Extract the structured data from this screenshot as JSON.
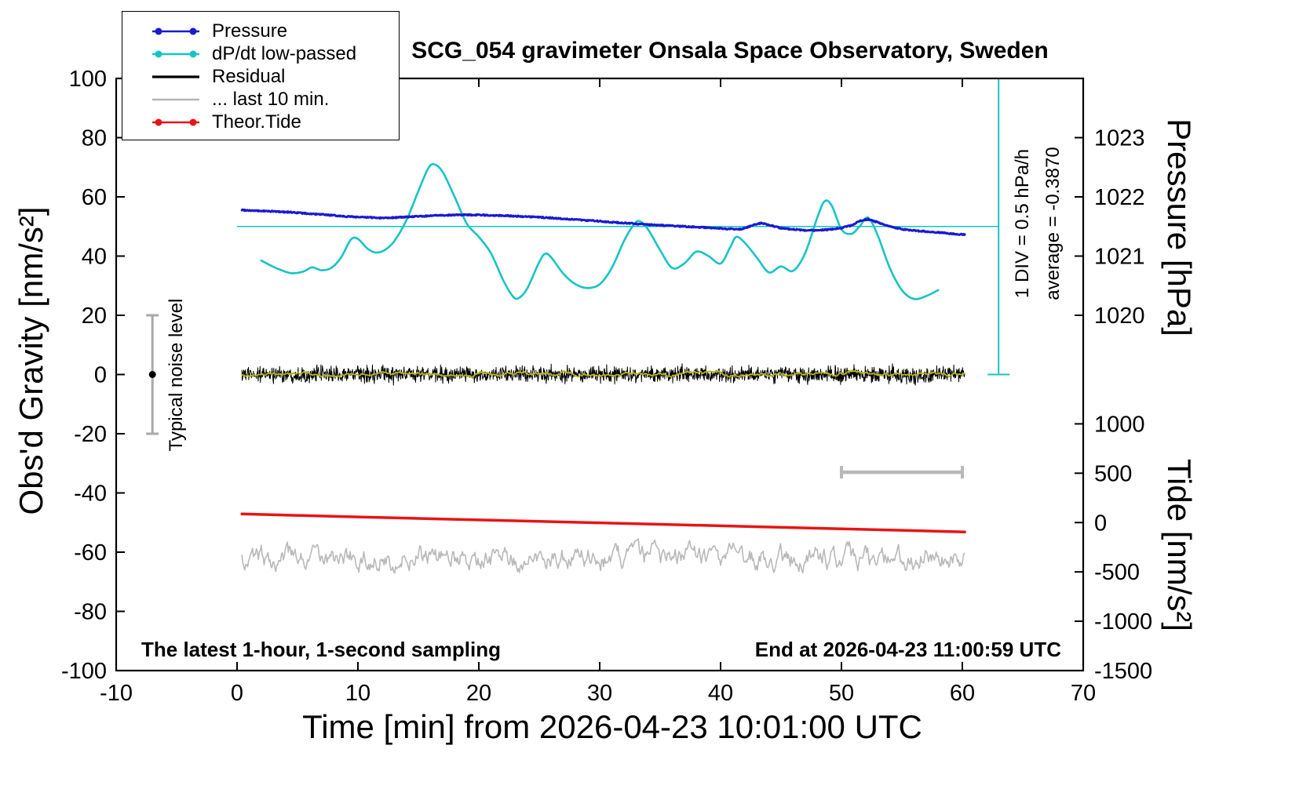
{
  "chart_data": {
    "type": "line",
    "title": "SCG_054 gravimeter Onsala Space Observatory, Sweden",
    "xlabel": "Time [min] from 2026-04-23 10:01:00 UTC",
    "ylabel_left": "Obs'd Gravity [nm/s²]",
    "ylabel_pressure": "Pressure [hPa]",
    "ylabel_tide": "Tide [nm/s²]",
    "footer_left": "The latest 1-hour, 1-second sampling",
    "footer_right": "End at 2026-04-23 11:00:59 UTC",
    "xlim": [
      -10,
      70
    ],
    "ylim": [
      -100,
      100
    ],
    "x_ticks": [
      -10,
      0,
      10,
      20,
      30,
      40,
      50,
      60,
      70
    ],
    "y_ticks_left": [
      -100,
      -80,
      -60,
      -40,
      -20,
      0,
      20,
      40,
      60,
      80,
      100
    ],
    "pressure_axis": {
      "ticks": [
        1023,
        1022,
        1021,
        1020
      ],
      "hpa_offset": 1019,
      "gravity_per_hpa": 20
    },
    "tide_axis": {
      "ticks": [
        1000,
        500,
        0,
        -500,
        -1000,
        -1500
      ],
      "gravity_offset": -50,
      "tide_per_gravity": 30
    },
    "reference_line_y": 50,
    "scale_bar": {
      "x": 63,
      "y_top": 100,
      "y_bottom": 0,
      "label_div": "1 DIV = 0.5 hPa/h",
      "label_avg": "average = -0.3870"
    },
    "noise_marker": {
      "x": -7,
      "y": 0,
      "half_range": 20,
      "label": "Typical noise level"
    },
    "interval_bar": {
      "x_start": 50,
      "x_end": 60,
      "y": -33
    },
    "legend": [
      {
        "id": "pressure",
        "label": "Pressure",
        "color": "#1a1ad2",
        "marker": "dots"
      },
      {
        "id": "dpdt",
        "label": "dP/dt low-passed",
        "color": "#17c4c4",
        "marker": "dots"
      },
      {
        "id": "residual",
        "label": "Residual",
        "color": "#000000",
        "marker": "line"
      },
      {
        "id": "last10",
        "label": "... last 10 min.",
        "color": "#b4b4b4",
        "marker": "line"
      },
      {
        "id": "tide",
        "label": "Theor.Tide",
        "color": "#e81414",
        "marker": "dots"
      }
    ],
    "series": {
      "pressure": {
        "color": "#1a1ad2",
        "width": 3,
        "step": 0.05,
        "jitter": 0.4,
        "seed": 99,
        "points": [
          [
            0.4,
            55.6
          ],
          [
            1.5,
            55.3
          ],
          [
            3,
            55.1
          ],
          [
            4.5,
            54.8
          ],
          [
            6,
            54.3
          ],
          [
            7.5,
            53.9
          ],
          [
            9,
            53.4
          ],
          [
            10.5,
            53.1
          ],
          [
            12,
            52.9
          ],
          [
            13.5,
            53.1
          ],
          [
            15,
            53.4
          ],
          [
            16.5,
            53.7
          ],
          [
            18,
            53.9
          ],
          [
            19.5,
            53.9
          ],
          [
            21,
            53.8
          ],
          [
            22.5,
            53.6
          ],
          [
            24,
            53.3
          ],
          [
            25.5,
            53.0
          ],
          [
            27,
            52.6
          ],
          [
            28.5,
            52.2
          ],
          [
            30,
            51.8
          ],
          [
            31.5,
            51.3
          ],
          [
            33,
            50.9
          ],
          [
            34.5,
            50.5
          ],
          [
            36,
            50.2
          ],
          [
            37.5,
            49.9
          ],
          [
            39,
            49.6
          ],
          [
            40.5,
            49.2
          ],
          [
            41.8,
            49.1
          ],
          [
            42.8,
            50.6
          ],
          [
            43.4,
            51.2
          ],
          [
            44.2,
            50.3
          ],
          [
            45,
            49.4
          ],
          [
            46,
            49.0
          ],
          [
            47,
            48.7
          ],
          [
            48,
            48.7
          ],
          [
            49,
            49.0
          ],
          [
            50,
            49.5
          ],
          [
            50.8,
            50.3
          ],
          [
            51.6,
            52.0
          ],
          [
            52.2,
            52.4
          ],
          [
            53,
            51.4
          ],
          [
            54,
            50.0
          ],
          [
            55,
            49.1
          ],
          [
            56,
            48.6
          ],
          [
            57,
            48.3
          ],
          [
            58,
            48.0
          ],
          [
            59,
            47.6
          ],
          [
            60.2,
            47.2
          ]
        ]
      },
      "dpdt": {
        "color": "#17c4c4",
        "width": 2.6,
        "points": [
          [
            2,
            38.5
          ],
          [
            2.8,
            36.8
          ],
          [
            3.5,
            35.5
          ],
          [
            4.5,
            34.2
          ],
          [
            5.5,
            34.8
          ],
          [
            6.2,
            36.2
          ],
          [
            7,
            35.2
          ],
          [
            7.8,
            36.0
          ],
          [
            8.6,
            39.5
          ],
          [
            9.4,
            45.5
          ],
          [
            10,
            45.8
          ],
          [
            10.8,
            42.5
          ],
          [
            11.5,
            41.2
          ],
          [
            12.2,
            42.0
          ],
          [
            13,
            45.0
          ],
          [
            14,
            52.0
          ],
          [
            15,
            62.0
          ],
          [
            15.8,
            69.5
          ],
          [
            16.3,
            71.0
          ],
          [
            17,
            68.5
          ],
          [
            18,
            60.0
          ],
          [
            19,
            51.0
          ],
          [
            20,
            46.5
          ],
          [
            21,
            41.0
          ],
          [
            22,
            32.0
          ],
          [
            22.8,
            26.5
          ],
          [
            23.3,
            25.8
          ],
          [
            24,
            29.0
          ],
          [
            25,
            38.0
          ],
          [
            25.5,
            40.8
          ],
          [
            26,
            39.5
          ],
          [
            27,
            34.0
          ],
          [
            28,
            30.5
          ],
          [
            29,
            29.2
          ],
          [
            30,
            30.5
          ],
          [
            31,
            36.0
          ],
          [
            32,
            45.0
          ],
          [
            32.8,
            50.5
          ],
          [
            33.3,
            51.8
          ],
          [
            34,
            49.0
          ],
          [
            35,
            42.0
          ],
          [
            36,
            36.0
          ],
          [
            37,
            37.5
          ],
          [
            38,
            41.5
          ],
          [
            39,
            40.0
          ],
          [
            40,
            37.5
          ],
          [
            40.8,
            43.0
          ],
          [
            41.3,
            46.5
          ],
          [
            42,
            44.5
          ],
          [
            43,
            39.5
          ],
          [
            44,
            34.5
          ],
          [
            45,
            36.5
          ],
          [
            46,
            35.0
          ],
          [
            47,
            41.0
          ],
          [
            48,
            53.0
          ],
          [
            48.6,
            58.5
          ],
          [
            49.2,
            57.0
          ],
          [
            50,
            49.0
          ],
          [
            50.8,
            47.5
          ],
          [
            51.5,
            50.0
          ],
          [
            52.2,
            53.0
          ],
          [
            53,
            47.0
          ],
          [
            54,
            36.0
          ],
          [
            55,
            28.5
          ],
          [
            56,
            25.5
          ],
          [
            57,
            26.5
          ],
          [
            58,
            28.5
          ]
        ]
      },
      "theor_tide": {
        "color": "#e81414",
        "width": 3.5,
        "points": [
          [
            0.4,
            -47.1
          ],
          [
            10,
            -48.1
          ],
          [
            20,
            -49.1
          ],
          [
            30,
            -50.1
          ],
          [
            40,
            -51.1
          ],
          [
            50,
            -52.1
          ],
          [
            60.2,
            -53.2
          ]
        ]
      },
      "residual": {
        "color": "#000000",
        "width": 1,
        "seed": 1234,
        "x_start": 0.4,
        "x_end": 60.2,
        "step": 0.03,
        "mean": 0,
        "spike": 4.6
      },
      "residual_smooth": {
        "color": "#b4b414",
        "width": 1.8,
        "seed": 555,
        "phi": 0.9,
        "input": 0.5,
        "gain": 1.25
      },
      "last10": {
        "color": "#b9b9b9",
        "width": 1.6,
        "seed": 777,
        "x_start": 0.4,
        "x_end": 60.2,
        "step": 0.08,
        "mean": -62,
        "phi": 0.72,
        "input": 2.6,
        "gain": 2.0,
        "clamp": 6.5
      }
    },
    "marker_colors": {
      "noise_bar": "#a9a9a9",
      "noise_dot": "#000000",
      "interval_bar": "#b9b9b9"
    }
  }
}
